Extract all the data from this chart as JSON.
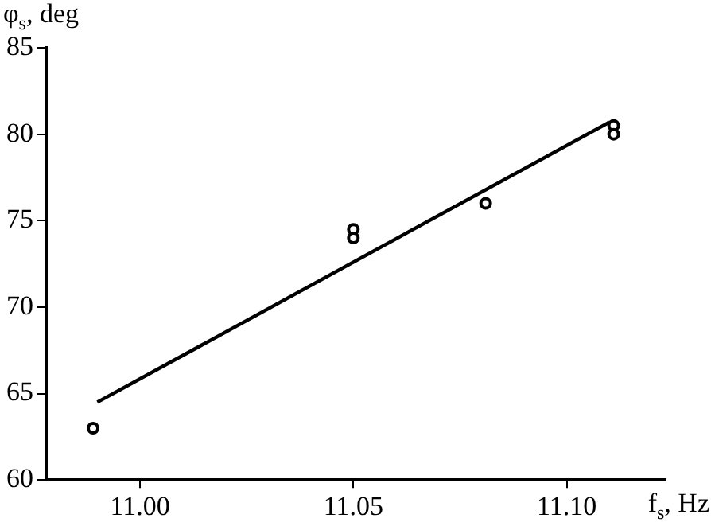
{
  "chart_data": {
    "type": "scatter",
    "xlabel": "f$_{s}$, Hz",
    "ylabel": "φ$_{s}$, deg",
    "xlim": [
      10.978,
      11.123
    ],
    "xticks": [
      {
        "value": 11.0,
        "label": "11.00"
      },
      {
        "value": 11.05,
        "label": "11.05"
      },
      {
        "value": 11.1,
        "label": "11.10"
      }
    ],
    "ylim": [
      60,
      85
    ],
    "yticks": [
      60,
      65,
      70,
      75,
      80,
      85
    ],
    "grid": false,
    "legend": false,
    "series": [
      {
        "color": "#000000",
        "marker": "circle",
        "x": [
          10.989,
          11.05,
          11.05,
          11.081,
          11.111,
          11.111
        ],
        "values": [
          63,
          74.5,
          74,
          76,
          80.5,
          80
        ]
      },
      {
        "type": "line",
        "color": "#000000",
        "marker": "none",
        "x": [
          10.99,
          11.11
        ],
        "values": [
          64.5,
          80.7
        ]
      }
    ]
  }
}
